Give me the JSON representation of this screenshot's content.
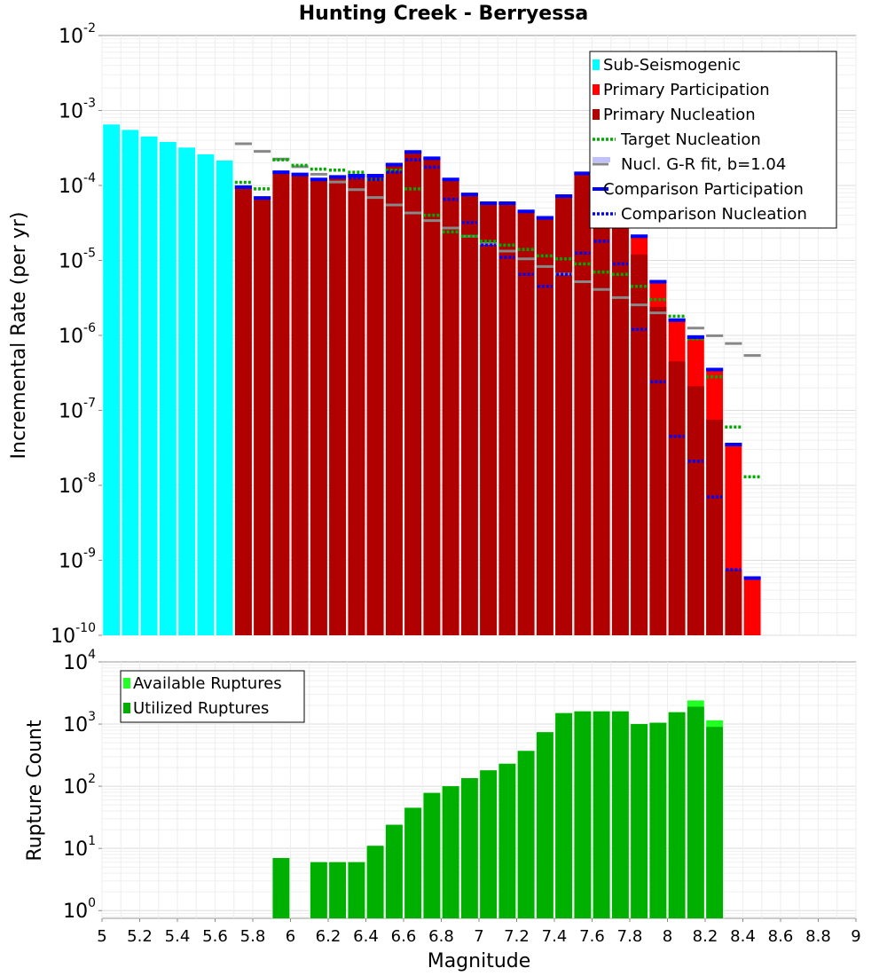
{
  "chart_data": [
    {
      "type": "bar",
      "title": "Hunting Creek - Berryessa",
      "ylabel": "Incremental Rate (per yr)",
      "yscale": "log",
      "ylim": [
        1e-10,
        0.01
      ],
      "xlim": [
        5,
        9
      ],
      "y_tick_exponents": [
        -10,
        -9,
        -8,
        -7,
        -6,
        -5,
        -4,
        -3,
        -2
      ],
      "grid": true,
      "legend_position": "top-right",
      "legend": [
        "Sub-Seismogenic",
        "Primary Participation",
        "Primary Nucleation",
        "Target Nucleation",
        "Nucl. G-R fit, b=1.04",
        "Comparison Participation",
        "Comparison Nucleation"
      ],
      "bin_width": 0.1,
      "colors": {
        "sub_seismogenic": "#00ffff",
        "primary_participation": "#ff0000",
        "primary_nucleation": "#b00000",
        "target_nucleation": "#00aa00",
        "gr_fit": "#888888",
        "comparison_participation": "#0000ff",
        "comparison_nucleation": "#0000ff"
      },
      "series": [
        {
          "name": "Sub-Seismogenic",
          "x": [
            5.05,
            5.15,
            5.25,
            5.35,
            5.45,
            5.55,
            5.65
          ],
          "values": [
            0.00065,
            0.00055,
            0.00045,
            0.00038,
            0.00032,
            0.00026,
            0.000215
          ]
        },
        {
          "name": "Primary Participation",
          "x": [
            5.75,
            5.85,
            5.95,
            6.05,
            6.15,
            6.25,
            6.35,
            6.45,
            6.55,
            6.65,
            6.75,
            6.85,
            6.95,
            7.05,
            7.15,
            7.25,
            7.35,
            7.45,
            7.55,
            7.65,
            7.75,
            7.85,
            7.95,
            8.05,
            8.15,
            8.25,
            8.35,
            8.45
          ],
          "values": [
            9.5e-05,
            6.8e-05,
            0.00015,
            0.00014,
            0.00012,
            0.00013,
            0.000135,
            0.000135,
            0.00019,
            0.00028,
            0.00023,
            0.00012,
            7.6e-05,
            5.8e-05,
            5.8e-05,
            4.5e-05,
            3.7e-05,
            7.2e-05,
            0.000145,
            0.00018,
            7.5e-05,
            2.1e-05,
            5.2e-06,
            1.6e-06,
            9.5e-07,
            3.5e-07,
            3.5e-08,
            5.8e-10
          ]
        },
        {
          "name": "Primary Nucleation",
          "x": [
            5.75,
            5.85,
            5.95,
            6.05,
            6.15,
            6.25,
            6.35,
            6.45,
            6.55,
            6.65,
            6.75,
            6.85,
            6.95,
            7.05,
            7.15,
            7.25,
            7.35,
            7.45,
            7.55,
            7.65,
            7.75,
            7.85,
            7.95,
            8.05,
            8.15,
            8.25,
            8.35,
            8.45
          ],
          "values": [
            9.5e-05,
            6.8e-05,
            0.00015,
            0.00014,
            0.00012,
            0.00013,
            0.000135,
            0.000135,
            0.00019,
            0.00028,
            0.00023,
            0.00012,
            7.6e-05,
            5.8e-05,
            5.8e-05,
            4.5e-05,
            3.7e-05,
            7.2e-05,
            0.000145,
            0.00018,
            7.5e-05,
            1.2e-05,
            2.4e-06,
            4.5e-07,
            2.1e-07,
            7.5e-08,
            7.5e-10,
            null
          ]
        },
        {
          "name": "Target Nucleation",
          "x": [
            5.75,
            5.85,
            5.95,
            6.05,
            6.15,
            6.25,
            6.35,
            6.45,
            6.55,
            6.65,
            6.75,
            6.85,
            6.95,
            7.05,
            7.15,
            7.25,
            7.35,
            7.45,
            7.55,
            7.65,
            7.75,
            7.85,
            7.95,
            8.05,
            8.15,
            8.25,
            8.35,
            8.45
          ],
          "values": [
            0.00011,
            9e-05,
            0.00022,
            0.000185,
            0.000165,
            0.00016,
            0.00015,
            0.00012,
            0.00016,
            9e-05,
            4e-05,
            2.4e-05,
            2.1e-05,
            1.8e-05,
            1.6e-05,
            1.4e-05,
            1.15e-05,
            1.05e-05,
            9e-06,
            7e-06,
            6.5e-06,
            4.5e-06,
            3e-06,
            1.8e-06,
            9e-07,
            2.8e-07,
            6e-08,
            1.3e-08
          ]
        },
        {
          "name": "Nucl. G-R fit, b=1.04",
          "x": [
            5.75,
            5.85,
            5.95,
            6.05,
            6.15,
            6.25,
            6.35,
            6.45,
            6.55,
            6.65,
            6.75,
            6.85,
            6.95,
            7.05,
            7.15,
            7.25,
            7.35,
            7.45,
            7.55,
            7.65,
            7.75,
            7.85,
            7.95,
            8.05,
            8.15,
            8.25,
            8.35,
            8.45
          ],
          "values": [
            0.00036,
            0.000285,
            0.000225,
            0.000178,
            0.000141,
            0.000111,
            8.8e-05,
            6.9e-05,
            5.5e-05,
            4.3e-05,
            3.4e-05,
            2.7e-05,
            2.1e-05,
            1.68e-05,
            1.33e-05,
            1.05e-05,
            8.3e-06,
            6.6e-06,
            5.2e-06,
            4.1e-06,
            3.2e-06,
            2.55e-06,
            2e-06,
            1.6e-06,
            1.25e-06,
            9.9e-07,
            7.8e-07,
            5.4e-07
          ]
        },
        {
          "name": "Comparison Participation",
          "x": [
            5.75,
            5.85,
            5.95,
            6.05,
            6.15,
            6.25,
            6.35,
            6.45,
            6.55,
            6.65,
            6.75,
            6.85,
            6.95,
            7.05,
            7.15,
            7.25,
            7.35,
            7.45,
            7.55,
            7.65,
            7.75,
            7.85,
            7.95,
            8.05,
            8.15,
            8.25,
            8.35,
            8.45
          ],
          "values": [
            9.5e-05,
            6.8e-05,
            0.00015,
            0.00014,
            0.00012,
            0.00013,
            0.000135,
            0.000135,
            0.00019,
            0.00028,
            0.00023,
            0.00012,
            7.6e-05,
            5.8e-05,
            5.8e-05,
            4.5e-05,
            3.7e-05,
            7.2e-05,
            0.000145,
            0.00018,
            7.5e-05,
            2.1e-05,
            5.2e-06,
            1.6e-06,
            9.5e-07,
            3.5e-07,
            3.5e-08,
            5.8e-10
          ]
        },
        {
          "name": "Comparison Nucleation",
          "x": [
            5.75,
            5.85,
            5.95,
            6.05,
            6.15,
            6.25,
            6.35,
            6.45,
            6.55,
            6.65,
            6.75,
            6.85,
            6.95,
            7.05,
            7.15,
            7.25,
            7.35,
            7.45,
            7.55,
            7.65,
            7.75,
            7.85,
            7.95,
            8.05,
            8.15,
            8.25,
            8.35,
            8.45
          ],
          "values": [
            9.5e-05,
            6.8e-05,
            0.00015,
            0.00014,
            0.00012,
            0.00013,
            0.000125,
            0.00012,
            0.00015,
            0.00022,
            0.000175,
            6.5e-05,
            3.2e-05,
            1.6e-05,
            1.1e-05,
            6.5e-06,
            4.5e-06,
            6.5e-06,
            1.25e-05,
            1.8e-05,
            9e-06,
            1.2e-06,
            2.4e-07,
            4.5e-08,
            2.1e-08,
            7e-09,
            7.5e-10,
            null
          ]
        }
      ]
    },
    {
      "type": "bar",
      "ylabel": "Rupture Count",
      "xlabel": "Magnitude",
      "yscale": "log",
      "ylim": [
        0.75,
        10000.0
      ],
      "xlim": [
        5,
        9
      ],
      "y_tick_exponents": [
        0,
        1,
        2,
        3,
        4
      ],
      "x_ticks": [
        "5",
        "5.2",
        "5.4",
        "5.6",
        "5.8",
        "6",
        "6.2",
        "6.4",
        "6.6",
        "6.8",
        "7",
        "7.2",
        "7.4",
        "7.6",
        "7.8",
        "8",
        "8.2",
        "8.4",
        "8.6",
        "8.8",
        "9"
      ],
      "grid": true,
      "legend_position": "top-left",
      "legend": [
        "Available Ruptures",
        "Utilized Ruptures"
      ],
      "colors": {
        "available": "#22ff22",
        "utilized": "#00b000"
      },
      "series": [
        {
          "name": "Available Ruptures",
          "x": [
            5.95,
            6.15,
            6.25,
            6.35,
            6.45,
            6.55,
            6.65,
            6.75,
            6.85,
            6.95,
            7.05,
            7.15,
            7.25,
            7.35,
            7.45,
            7.55,
            7.65,
            7.75,
            7.85,
            7.95,
            8.05,
            8.15,
            8.25
          ],
          "values": [
            7,
            6,
            6,
            6,
            11,
            24,
            45,
            78,
            100,
            135,
            180,
            230,
            370,
            740,
            1500,
            1600,
            1600,
            1600,
            1000,
            1050,
            1550,
            2400,
            1150
          ]
        },
        {
          "name": "Utilized Ruptures",
          "x": [
            5.95,
            6.15,
            6.25,
            6.35,
            6.45,
            6.55,
            6.65,
            6.75,
            6.85,
            6.95,
            7.05,
            7.15,
            7.25,
            7.35,
            7.45,
            7.55,
            7.65,
            7.75,
            7.85,
            7.95,
            8.05,
            8.15,
            8.25
          ],
          "values": [
            7,
            6,
            6,
            6,
            11,
            24,
            45,
            78,
            100,
            135,
            180,
            230,
            370,
            740,
            1500,
            1600,
            1600,
            1600,
            1000,
            1050,
            1550,
            1900,
            900
          ]
        }
      ]
    }
  ]
}
